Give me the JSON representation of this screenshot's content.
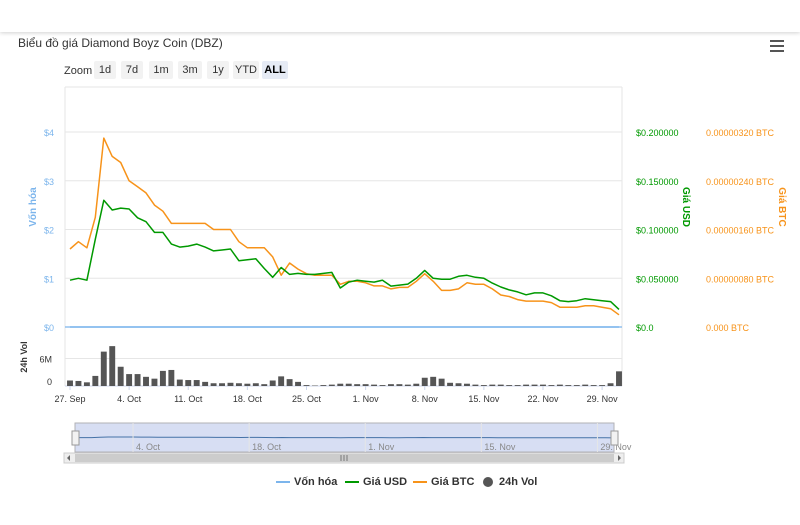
{
  "title": "Biểu đồ giá Diamond Boyz Coin (DBZ)",
  "menu_icon": "hamburger-menu-icon",
  "zoom": {
    "label": "Zoom",
    "buttons": [
      "1d",
      "7d",
      "1m",
      "3m",
      "1y",
      "YTD",
      "ALL"
    ],
    "active": "ALL"
  },
  "colors": {
    "market_cap": "#7cb5ec",
    "usd": "#009900",
    "btc": "#f7931a",
    "volume": "#555555",
    "navigator_fill": "#c9d3ef"
  },
  "chart_data": {
    "type": "line",
    "x": [
      "27 Sep",
      "28 Sep",
      "29 Sep",
      "30 Sep",
      "1 Oct",
      "2 Oct",
      "3 Oct",
      "4 Oct",
      "5 Oct",
      "6 Oct",
      "7 Oct",
      "8 Oct",
      "9 Oct",
      "10 Oct",
      "11 Oct",
      "12 Oct",
      "13 Oct",
      "14 Oct",
      "15 Oct",
      "16 Oct",
      "17 Oct",
      "18 Oct",
      "19 Oct",
      "20 Oct",
      "21 Oct",
      "22 Oct",
      "23 Oct",
      "24 Oct",
      "25 Oct",
      "26 Oct",
      "27 Oct",
      "28 Oct",
      "29 Oct",
      "30 Oct",
      "31 Oct",
      "1 Nov",
      "2 Nov",
      "3 Nov",
      "4 Nov",
      "5 Nov",
      "6 Nov",
      "7 Nov",
      "8 Nov",
      "9 Nov",
      "10 Nov",
      "11 Nov",
      "12 Nov",
      "13 Nov",
      "14 Nov",
      "15 Nov",
      "16 Nov",
      "17 Nov",
      "18 Nov",
      "19 Nov",
      "20 Nov",
      "21 Nov",
      "22 Nov",
      "23 Nov",
      "24 Nov",
      "25 Nov",
      "26 Nov",
      "27 Nov",
      "28 Nov",
      "29 Nov",
      "30 Nov",
      "1 Dec"
    ],
    "x_tick_labels": [
      "27. Sep",
      "4. Oct",
      "11. Oct",
      "18. Oct",
      "25. Oct",
      "1. Nov",
      "8. Nov",
      "15. Nov",
      "22. Nov",
      "29. Nov"
    ],
    "axes": {
      "market_cap": {
        "label": "Vốn hóa",
        "ticks": [
          "$0",
          "$1",
          "$2",
          "$3",
          "$4"
        ],
        "range": [
          0,
          4
        ]
      },
      "usd": {
        "label": "Giá USD",
        "ticks": [
          "$0.0",
          "$0.050000",
          "$0.100000",
          "$0.150000",
          "$0.200000"
        ],
        "range": [
          0,
          0.2
        ]
      },
      "btc": {
        "label": "Giá BTC",
        "ticks": [
          "0.000 BTC",
          "0.00000080 BTC",
          "0.00000160 BTC",
          "0.00000240 BTC",
          "0.00000320 BTC"
        ],
        "range": [
          0,
          3.2e-06
        ]
      },
      "volume": {
        "label": "24h Vol",
        "ticks": [
          "0",
          "6M"
        ],
        "range": [
          0,
          12
        ]
      }
    },
    "series": [
      {
        "name": "Vốn hóa",
        "values": [
          0,
          0,
          0,
          0,
          0,
          0,
          0,
          0,
          0,
          0,
          0,
          0,
          0,
          0,
          0,
          0,
          0,
          0,
          0,
          0,
          0,
          0,
          0,
          0,
          0,
          0,
          0,
          0,
          0,
          0,
          0,
          0,
          0,
          0,
          0,
          0,
          0,
          0,
          0,
          0,
          0,
          0,
          0,
          0,
          0,
          0,
          0,
          0,
          0,
          0,
          0,
          0,
          0,
          0,
          0,
          0,
          0,
          0,
          0,
          0,
          0,
          0,
          0,
          0,
          0,
          0
        ]
      },
      {
        "name": "Giá USD",
        "values": [
          0.048,
          0.05,
          0.048,
          0.09,
          0.13,
          0.12,
          0.122,
          0.121,
          0.112,
          0.108,
          0.097,
          0.097,
          0.085,
          0.082,
          0.083,
          0.085,
          0.082,
          0.078,
          0.079,
          0.08,
          0.068,
          0.069,
          0.07,
          0.06,
          0.051,
          0.061,
          0.054,
          0.055,
          0.054,
          0.054,
          0.055,
          0.056,
          0.04,
          0.046,
          0.048,
          0.047,
          0.046,
          0.048,
          0.042,
          0.043,
          0.044,
          0.05,
          0.058,
          0.05,
          0.049,
          0.049,
          0.052,
          0.053,
          0.051,
          0.05,
          0.045,
          0.041,
          0.038,
          0.036,
          0.033,
          0.035,
          0.035,
          0.032,
          0.027,
          0.026,
          0.027,
          0.029,
          0.028,
          0.027,
          0.026,
          0.018
        ]
      },
      {
        "name": "Giá BTC",
        "values": [
          1.28e-06,
          1.4e-06,
          1.3e-06,
          1.8e-06,
          3.1e-06,
          2.8e-06,
          2.7e-06,
          2.4e-06,
          2.3e-06,
          2.2e-06,
          2e-06,
          1.9e-06,
          1.7e-06,
          1.7e-06,
          1.7e-06,
          1.7e-06,
          1.7e-06,
          1.6e-06,
          1.6e-06,
          1.6e-06,
          1.4e-06,
          1.3e-06,
          1.3e-06,
          1.3e-06,
          1.15e-06,
          8.5e-07,
          1.05e-06,
          9.5e-07,
          8.75e-07,
          8.5e-07,
          8.5e-07,
          8.5e-07,
          7e-07,
          7.5e-07,
          7.5e-07,
          7.25e-07,
          6.75e-07,
          6.75e-07,
          6.25e-07,
          6.5e-07,
          6.5e-07,
          7.5e-07,
          8.75e-07,
          7.5e-07,
          6e-07,
          6e-07,
          6.25e-07,
          7.25e-07,
          7e-07,
          7e-07,
          6.25e-07,
          5.25e-07,
          5e-07,
          4.5e-07,
          4.25e-07,
          4.25e-07,
          4.25e-07,
          4e-07,
          3.25e-07,
          3.25e-07,
          3.25e-07,
          3.5e-07,
          3.5e-07,
          3.25e-07,
          3e-07,
          2e-07
        ]
      },
      {
        "name": "24h Vol",
        "type": "bar",
        "values": [
          1.2,
          1.1,
          0.8,
          2.2,
          7.5,
          8.7,
          4.2,
          2.6,
          2.6,
          2,
          1.6,
          3.3,
          3.5,
          1.4,
          1.3,
          1.3,
          0.9,
          0.6,
          0.6,
          0.7,
          0.6,
          0.5,
          0.6,
          0.4,
          1.2,
          2.1,
          1.5,
          0.9,
          0.2,
          0.1,
          0.2,
          0.3,
          0.5,
          0.5,
          0.4,
          0.4,
          0.3,
          0.2,
          0.4,
          0.4,
          0.3,
          0.5,
          1.8,
          2,
          1.6,
          0.7,
          0.6,
          0.5,
          0.3,
          0.2,
          0.3,
          0.3,
          0.2,
          0.2,
          0.3,
          0.3,
          0.3,
          0.2,
          0.3,
          0.2,
          0.2,
          0.3,
          0.2,
          0.2,
          0.6,
          3.2
        ]
      }
    ],
    "navigator": {
      "tick_labels": [
        "4. Oct",
        "18. Oct",
        "1. Nov",
        "15. Nov",
        "29. Nov"
      ],
      "series": "Giá USD"
    },
    "legend": {
      "position": "bottom",
      "items": [
        "Vốn hóa",
        "Giá USD",
        "Giá BTC",
        "24h Vol"
      ]
    },
    "grid": true
  }
}
